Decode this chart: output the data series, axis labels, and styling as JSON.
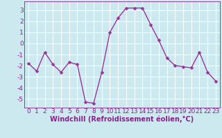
{
  "x": [
    0,
    1,
    2,
    3,
    4,
    5,
    6,
    7,
    8,
    9,
    10,
    11,
    12,
    13,
    14,
    15,
    16,
    17,
    18,
    19,
    20,
    21,
    22,
    23
  ],
  "y": [
    -1.8,
    -2.5,
    -0.8,
    -1.9,
    -2.6,
    -1.7,
    -1.9,
    -5.3,
    -5.4,
    -2.6,
    1.0,
    2.3,
    3.2,
    3.2,
    3.2,
    1.7,
    0.3,
    -1.3,
    -2.0,
    -2.1,
    -2.2,
    -0.8,
    -2.6,
    -3.4
  ],
  "line_color": "#993399",
  "marker": "D",
  "markersize": 2.5,
  "linewidth": 1.0,
  "xlabel": "Windchill (Refroidissement éolien,°C)",
  "xlim": [
    -0.5,
    23.5
  ],
  "ylim": [
    -5.8,
    3.8
  ],
  "yticks": [
    -5,
    -4,
    -3,
    -2,
    -1,
    0,
    1,
    2,
    3
  ],
  "xticks": [
    0,
    1,
    2,
    3,
    4,
    5,
    6,
    7,
    8,
    9,
    10,
    11,
    12,
    13,
    14,
    15,
    16,
    17,
    18,
    19,
    20,
    21,
    22,
    23
  ],
  "bg_color": "#cce9f0",
  "grid_color": "#ffffff",
  "tick_fontsize": 6.5,
  "xlabel_fontsize": 7,
  "label_color": "#882288",
  "spine_color": "#882288"
}
